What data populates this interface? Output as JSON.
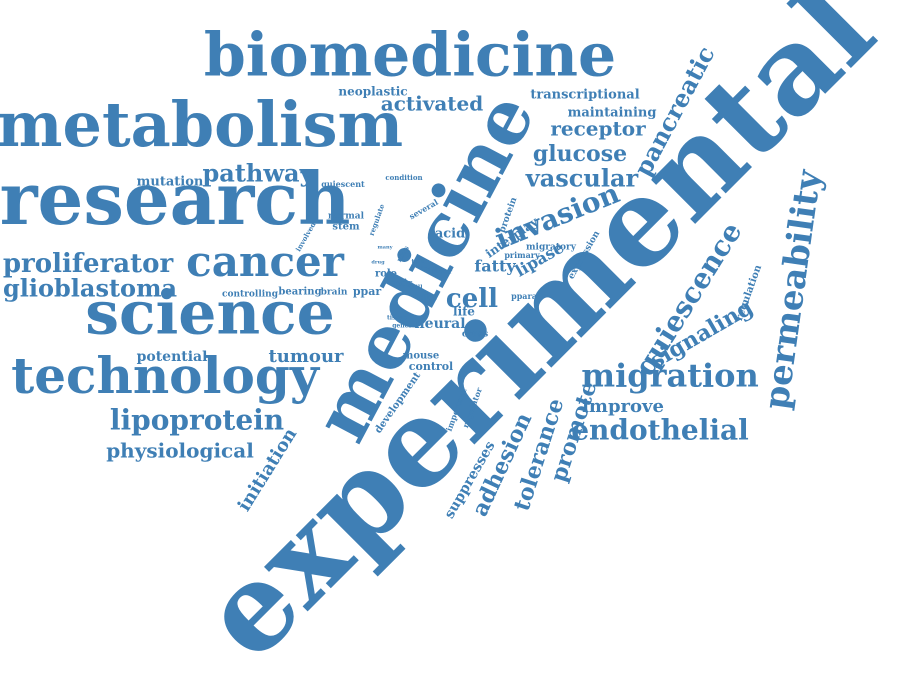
{
  "cloud": {
    "color": "#3f7fb5",
    "words": [
      "experimental",
      "medicine",
      "research",
      "metabolism",
      "biomedicine",
      "science",
      "technology",
      "cancer",
      "permeability",
      "migration",
      "endothelial",
      "invasion",
      "lipoprotein",
      "quiescence",
      "proliferator",
      "glioblastoma",
      "pathway",
      "vascular",
      "signaling",
      "cell",
      "glucose",
      "receptor",
      "pancreatic",
      "physiological",
      "activated",
      "adhesion",
      "tolerance",
      "promote",
      "improve",
      "initiation",
      "tumour",
      "potential",
      "mutation",
      "lipase",
      "fatty",
      "acid",
      "neural",
      "suppresses",
      "transcriptional",
      "maintaining",
      "neoplastic",
      "interplay",
      "life",
      "control",
      "mouse",
      "regulation",
      "development",
      "ppar",
      "brain",
      "bearing",
      "controlling",
      "axis",
      "role",
      "stem",
      "normal",
      "diet",
      "cross",
      "protein",
      "expression",
      "migratory",
      "primary",
      "ppara",
      "important",
      "regulator",
      "quiescent",
      "condition",
      "involved",
      "regulate",
      "several",
      "nscs",
      "talk",
      "level",
      "factor",
      "still",
      "tissue",
      "genes",
      "drug",
      "many"
    ]
  }
}
